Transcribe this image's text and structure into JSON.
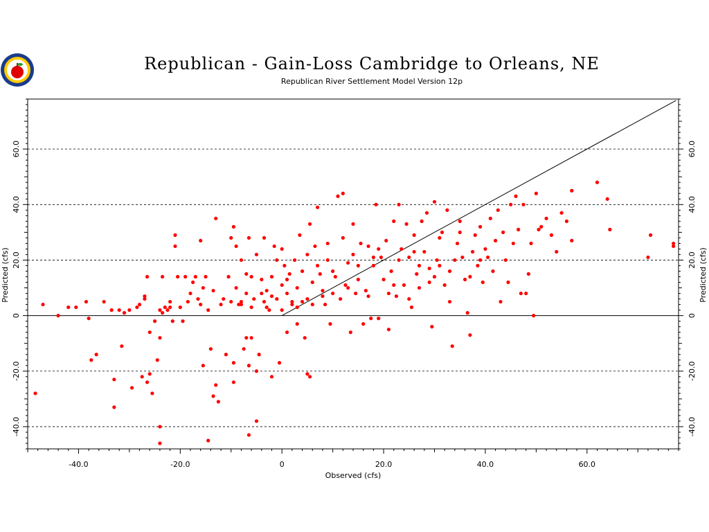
{
  "chart_data": {
    "type": "scatter",
    "title": "Republican - Gain-Loss Cambridge to Orleans, NE",
    "subtitle": "Republican River Settlement Model Version 12p",
    "xlabel": "Observed (cfs)",
    "ylabel": "Predicted (cfs)",
    "xlim": [
      -50,
      78
    ],
    "ylim": [
      -48,
      78
    ],
    "x_ticks": [
      "-40.0",
      "-20.0",
      "0",
      "20.0",
      "40.0",
      "60.0"
    ],
    "x_tick_values": [
      -40,
      -20,
      0,
      20,
      40,
      60
    ],
    "y_ticks": [
      "-40.0",
      "-20.0",
      "0",
      "20.0",
      "40.0",
      "60.0"
    ],
    "y_tick_values": [
      -40,
      -20,
      0,
      20,
      40,
      60
    ],
    "grid": "horizontal-dashed",
    "reference_line": "1:1",
    "point_color": "#ff0000",
    "logo_icon": "seal-with-apple-icon",
    "points": [
      [
        -48.5,
        -28
      ],
      [
        -47,
        4
      ],
      [
        -44,
        0
      ],
      [
        -42,
        3
      ],
      [
        -40.5,
        3
      ],
      [
        -38.5,
        5
      ],
      [
        -38,
        -1
      ],
      [
        -37.5,
        -16
      ],
      [
        -36.5,
        -14
      ],
      [
        -35,
        5
      ],
      [
        -33.5,
        2
      ],
      [
        -33,
        -23
      ],
      [
        -33,
        -33
      ],
      [
        -32,
        2
      ],
      [
        -31.5,
        -11
      ],
      [
        -31,
        1
      ],
      [
        -30,
        2
      ],
      [
        -29.5,
        -26
      ],
      [
        -28.5,
        3
      ],
      [
        -28,
        4
      ],
      [
        -27.5,
        -22
      ],
      [
        -27,
        6
      ],
      [
        -27,
        7
      ],
      [
        -26.5,
        14
      ],
      [
        -26.5,
        -24
      ],
      [
        -26,
        -6
      ],
      [
        -26,
        -21
      ],
      [
        -25.5,
        -28
      ],
      [
        -25,
        -2
      ],
      [
        -24.5,
        -16
      ],
      [
        -24,
        -40
      ],
      [
        -24,
        -46
      ],
      [
        -24,
        -8
      ],
      [
        -24,
        2
      ],
      [
        -23.5,
        1
      ],
      [
        -23.5,
        14
      ],
      [
        -23,
        3
      ],
      [
        -22.5,
        2
      ],
      [
        -22,
        3
      ],
      [
        -22,
        5
      ],
      [
        -21.5,
        -2
      ],
      [
        -21,
        25
      ],
      [
        -21,
        29
      ],
      [
        -20.5,
        14
      ],
      [
        -20,
        3
      ],
      [
        -19.5,
        -2
      ],
      [
        -19,
        14
      ],
      [
        -18.5,
        5
      ],
      [
        -18,
        8
      ],
      [
        -17.5,
        12
      ],
      [
        -17,
        14
      ],
      [
        -16.5,
        6
      ],
      [
        -16,
        27
      ],
      [
        -16,
        4
      ],
      [
        -15.5,
        -18
      ],
      [
        -15.5,
        10
      ],
      [
        -15,
        14
      ],
      [
        -14.5,
        2
      ],
      [
        -14.5,
        -45
      ],
      [
        -14,
        -12
      ],
      [
        -13.5,
        -29
      ],
      [
        -13.5,
        9
      ],
      [
        -13,
        35
      ],
      [
        -13,
        -25
      ],
      [
        -12.5,
        -31
      ],
      [
        -12,
        4
      ],
      [
        -11.5,
        6
      ],
      [
        -11,
        -14
      ],
      [
        -10.5,
        14
      ],
      [
        -10,
        5
      ],
      [
        -10,
        28
      ],
      [
        -9.5,
        32
      ],
      [
        -9.5,
        -17
      ],
      [
        -9.5,
        -24
      ],
      [
        -9,
        25
      ],
      [
        -8.5,
        4
      ],
      [
        -8,
        5
      ],
      [
        -8,
        20
      ],
      [
        -7.5,
        -12
      ],
      [
        -7,
        8
      ],
      [
        -7,
        15
      ],
      [
        -7,
        -8
      ],
      [
        -6.5,
        28
      ],
      [
        -6.5,
        -43
      ],
      [
        -6.5,
        -18
      ],
      [
        -6,
        14
      ],
      [
        -6,
        -8
      ],
      [
        -5.5,
        6
      ],
      [
        -5,
        22
      ],
      [
        -5,
        -20
      ],
      [
        -5,
        -38
      ],
      [
        -4.5,
        -14
      ],
      [
        -4,
        13
      ],
      [
        -3.5,
        5
      ],
      [
        -3.5,
        28
      ],
      [
        -3,
        3
      ],
      [
        -2.5,
        2
      ],
      [
        -2,
        7
      ],
      [
        -2,
        -22
      ],
      [
        -1.5,
        25
      ],
      [
        -1,
        6
      ],
      [
        -1,
        20
      ],
      [
        -0.5,
        -17
      ],
      [
        0,
        2
      ],
      [
        0,
        11
      ],
      [
        0,
        24
      ],
      [
        0.5,
        18
      ],
      [
        1,
        -6
      ],
      [
        1,
        8
      ],
      [
        1.5,
        15
      ],
      [
        2,
        5
      ],
      [
        2.5,
        20
      ],
      [
        3,
        3
      ],
      [
        3,
        -3
      ],
      [
        3.5,
        29
      ],
      [
        4,
        5
      ],
      [
        4.5,
        -8
      ],
      [
        5,
        -21
      ],
      [
        5,
        6
      ],
      [
        5.5,
        -22
      ],
      [
        5.5,
        33
      ],
      [
        6,
        4
      ],
      [
        6.5,
        25
      ],
      [
        7,
        39
      ],
      [
        7,
        18
      ],
      [
        7.5,
        15
      ],
      [
        8,
        9
      ],
      [
        8.5,
        4
      ],
      [
        9,
        20
      ],
      [
        9.5,
        -3
      ],
      [
        10,
        8
      ],
      [
        10.5,
        14
      ],
      [
        11,
        43
      ],
      [
        11.5,
        6
      ],
      [
        12,
        44
      ],
      [
        12,
        28
      ],
      [
        12.5,
        11
      ],
      [
        13,
        19
      ],
      [
        13.5,
        -6
      ],
      [
        14,
        22
      ],
      [
        14.5,
        8
      ],
      [
        15,
        13
      ],
      [
        15.5,
        26
      ],
      [
        16,
        -3
      ],
      [
        16.5,
        9
      ],
      [
        17,
        25
      ],
      [
        17.5,
        -1
      ],
      [
        18,
        18
      ],
      [
        18.5,
        40
      ],
      [
        19,
        -1
      ],
      [
        19.5,
        21
      ],
      [
        20,
        13
      ],
      [
        20.5,
        27
      ],
      [
        21,
        -5
      ],
      [
        21.5,
        16
      ],
      [
        22,
        34
      ],
      [
        22.5,
        7
      ],
      [
        23,
        40
      ],
      [
        23.5,
        24
      ],
      [
        24,
        11
      ],
      [
        24.5,
        33
      ],
      [
        25,
        21
      ],
      [
        25.5,
        3
      ],
      [
        26,
        29
      ],
      [
        26.5,
        15
      ],
      [
        27,
        10
      ],
      [
        27.5,
        34
      ],
      [
        28,
        23
      ],
      [
        28.5,
        37
      ],
      [
        29,
        17
      ],
      [
        29.5,
        -4
      ],
      [
        30,
        41
      ],
      [
        30.5,
        20
      ],
      [
        31,
        28
      ],
      [
        31.5,
        30
      ],
      [
        32,
        11
      ],
      [
        32.5,
        38
      ],
      [
        33,
        5
      ],
      [
        33.5,
        -11
      ],
      [
        34,
        20
      ],
      [
        34.5,
        26
      ],
      [
        35,
        34
      ],
      [
        35.5,
        21
      ],
      [
        36,
        13
      ],
      [
        36.5,
        1
      ],
      [
        37,
        -7
      ],
      [
        37.5,
        23
      ],
      [
        38,
        29
      ],
      [
        38.5,
        18
      ],
      [
        39,
        32
      ],
      [
        39.5,
        12
      ],
      [
        40,
        24
      ],
      [
        40.5,
        21
      ],
      [
        41,
        35
      ],
      [
        41.5,
        16
      ],
      [
        42,
        27
      ],
      [
        42.5,
        38
      ],
      [
        43,
        5
      ],
      [
        43.5,
        30
      ],
      [
        44,
        20
      ],
      [
        44.5,
        12
      ],
      [
        45,
        40
      ],
      [
        45.5,
        26
      ],
      [
        46,
        43
      ],
      [
        46.5,
        31
      ],
      [
        47,
        8
      ],
      [
        47.5,
        40
      ],
      [
        48,
        8
      ],
      [
        48.5,
        15
      ],
      [
        49,
        26
      ],
      [
        49.5,
        0
      ],
      [
        50,
        44
      ],
      [
        50.5,
        31
      ],
      [
        51,
        32
      ],
      [
        52,
        35
      ],
      [
        53,
        29
      ],
      [
        54,
        23
      ],
      [
        55,
        37
      ],
      [
        56,
        34
      ],
      [
        57,
        27
      ],
      [
        57,
        45
      ],
      [
        62,
        48
      ],
      [
        64,
        42
      ],
      [
        64.5,
        31
      ],
      [
        72,
        21
      ],
      [
        72.5,
        29
      ],
      [
        77,
        25
      ],
      [
        77,
        26
      ],
      [
        -9,
        10
      ],
      [
        -8,
        4
      ],
      [
        -4,
        8
      ],
      [
        -2,
        14
      ],
      [
        2,
        4
      ],
      [
        3,
        10
      ],
      [
        4,
        16
      ],
      [
        6,
        12
      ],
      [
        8,
        7
      ],
      [
        10,
        16
      ],
      [
        13,
        10
      ],
      [
        15,
        18
      ],
      [
        17,
        7
      ],
      [
        19,
        24
      ],
      [
        21,
        8
      ],
      [
        23,
        20
      ],
      [
        25,
        6
      ],
      [
        27,
        18
      ],
      [
        29,
        12
      ],
      [
        31,
        18
      ],
      [
        33,
        16
      ],
      [
        35,
        30
      ],
      [
        37,
        14
      ],
      [
        39,
        20
      ],
      [
        -6,
        3
      ],
      [
        -3,
        9
      ],
      [
        1,
        13
      ],
      [
        5,
        22
      ],
      [
        9,
        26
      ],
      [
        14,
        33
      ],
      [
        18,
        21
      ],
      [
        22,
        11
      ],
      [
        26,
        23
      ],
      [
        30,
        14
      ]
    ]
  }
}
